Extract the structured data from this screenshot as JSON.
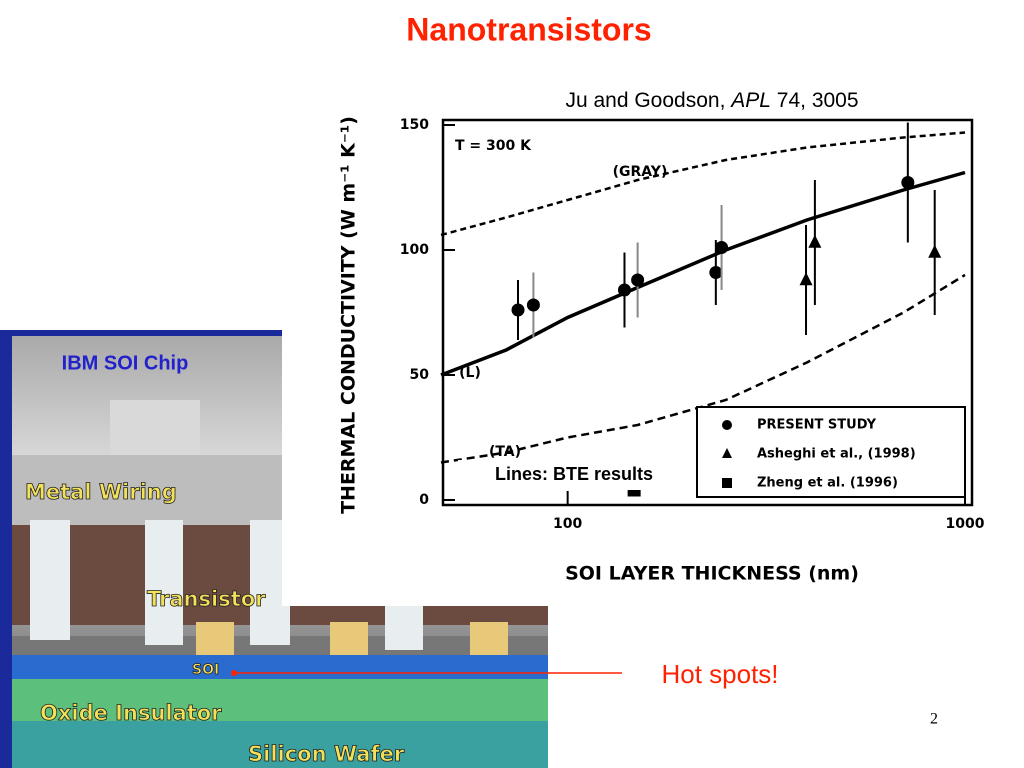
{
  "title": "Nanotransistors",
  "citation": {
    "authors": "Ju and Goodson,",
    "journal": "APL",
    "ref": "74, 3005"
  },
  "photo": {
    "caption": "IBM SOI Chip",
    "labels": [
      "Metal Wiring",
      "Transistor",
      "SOI",
      "Oxide Insulator",
      "Silicon Wafer"
    ]
  },
  "callout": "Hot spots!",
  "page_number": "2",
  "chart_data": {
    "type": "scatter",
    "xlabel": "SOI LAYER THICKNESS (nm)",
    "ylabel": "THERMAL CONDUCTIVITY (W m⁻¹ K⁻¹)",
    "annotations": [
      "T = 300 K",
      "Lines: BTE results"
    ],
    "xscale": "log",
    "xlim": [
      48,
      1000
    ],
    "xticks": [
      100,
      1000
    ],
    "ylim": [
      0,
      150
    ],
    "yticks": [
      0,
      50,
      100,
      150
    ],
    "curves_x": [
      48,
      70,
      100,
      150,
      250,
      400,
      700,
      1000
    ],
    "curves": [
      {
        "label": "(GRAY)",
        "values": [
          106,
          113,
          120,
          128,
          136,
          141,
          145,
          147
        ]
      },
      {
        "label": "(L)",
        "values": [
          50,
          60,
          73,
          85,
          100,
          112,
          124,
          131
        ]
      },
      {
        "label": "(TA)",
        "values": [
          15,
          19,
          25,
          30,
          40,
          55,
          75,
          90
        ]
      }
    ],
    "series": [
      {
        "name": "PRESENT STUDY",
        "marker": "circle",
        "color": "#000000",
        "x": [
          75,
          82,
          139,
          150,
          236,
          244,
          718
        ],
        "values": [
          76,
          78,
          84,
          88,
          91,
          101,
          127
        ],
        "errors": [
          12,
          13,
          15,
          15,
          13,
          17,
          24
        ]
      },
      {
        "name": "Asheghi et al., (1998)",
        "marker": "triangle",
        "color": "#000000",
        "x": [
          398,
          419,
          839
        ],
        "values": [
          88,
          103,
          99
        ],
        "errors": [
          22,
          25,
          25
        ]
      },
      {
        "name": "Zheng et al. (1996)",
        "marker": "square",
        "color": "#000000",
        "x": [
          147
        ],
        "values": [
          4
        ],
        "errors": [
          0
        ]
      }
    ]
  }
}
